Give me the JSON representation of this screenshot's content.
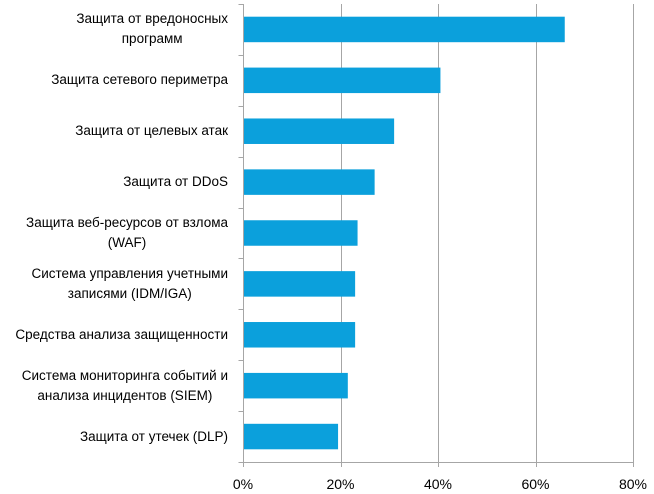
{
  "chart_data": {
    "type": "bar",
    "orientation": "horizontal",
    "title": "",
    "xlabel": "",
    "ylabel": "",
    "categories": [
      "Защита от вредоносных программ",
      "Защита сетевого периметра",
      "Защита от целевых атак",
      "Защита от DDoS",
      "Защита веб-ресурсов от взлома (WAF)",
      "Система управления учетными записями (IDM/IGA)",
      "Средства анализа защищенности",
      "Система мониторинга событий и анализа инцидентов (SIEM)",
      "Защита от утечек (DLP)"
    ],
    "category_lines": [
      [
        "Защита от вредоносных",
        "программ"
      ],
      [
        "Защита сетевого периметра"
      ],
      [
        "Защита от целевых атак"
      ],
      [
        "Защита от DDoS"
      ],
      [
        "Защита веб-ресурсов от взлома",
        "(WAF)"
      ],
      [
        "Система управления учетными",
        "записями (IDM/IGA)"
      ],
      [
        "Средства анализа защищенности"
      ],
      [
        "Система мониторинга событий и",
        "анализа инцидентов (SIEM)"
      ],
      [
        "Защита от утечек (DLP)"
      ]
    ],
    "values": [
      66,
      40.5,
      31,
      27,
      23.5,
      23,
      23,
      21.5,
      19.5
    ],
    "xlim": [
      0,
      80
    ],
    "xticks": [
      0,
      20,
      40,
      60,
      80
    ],
    "xtick_labels": [
      "0%",
      "20%",
      "40%",
      "60%",
      "80%"
    ],
    "grid": "vertical",
    "bar_color": "#0ba0dc",
    "grid_color": "#a6a6a6"
  }
}
